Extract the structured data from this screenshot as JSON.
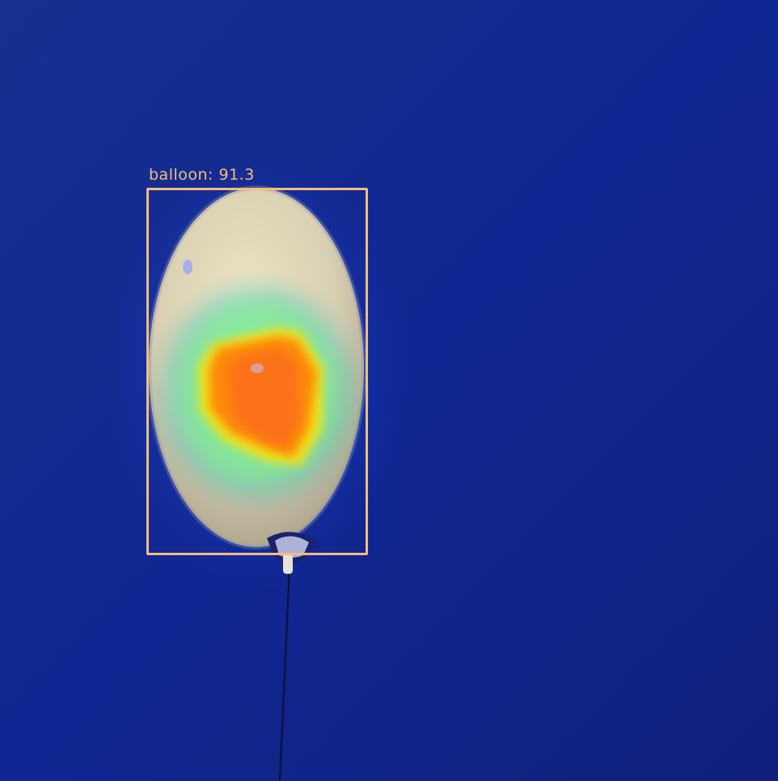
{
  "detection": {
    "label": "balloon: 91.3",
    "class_name": "balloon",
    "score": 91.3,
    "box_color": "#f5bd7a"
  },
  "scene": {
    "background_color": "#10248a",
    "heatmap_colors": [
      "#00bcd4",
      "#7cf08a",
      "#ffe600",
      "#ff7a00",
      "#ff5a1a"
    ]
  }
}
